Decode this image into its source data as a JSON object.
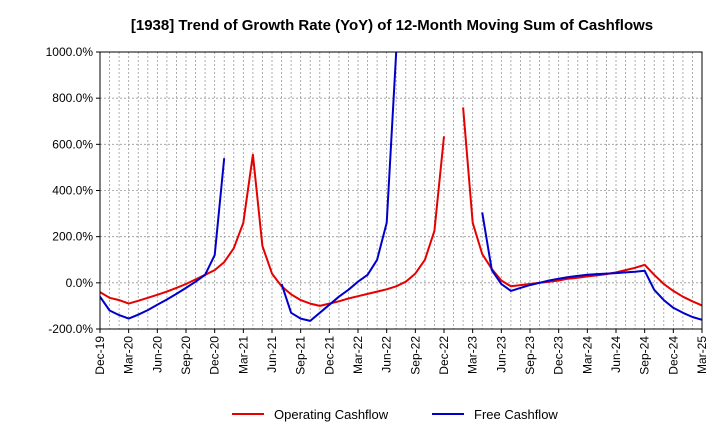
{
  "chart_data": {
    "type": "line",
    "title": "[1938]  Trend of Growth Rate (YoY) of 12-Month Moving Sum of Cashflows",
    "xlabel": "",
    "ylabel": "",
    "ylim": [
      -200,
      1000
    ],
    "yticks": [
      -200,
      0,
      200,
      400,
      600,
      800,
      1000
    ],
    "ytick_labels": [
      "-200.0%",
      "0.0%",
      "200.0%",
      "400.0%",
      "600.0%",
      "800.0%",
      "1000.0%"
    ],
    "xtick_labels": [
      "Dec-19",
      "Mar-20",
      "Jun-20",
      "Sep-20",
      "Dec-20",
      "Mar-21",
      "Jun-21",
      "Sep-21",
      "Dec-21",
      "Mar-22",
      "Jun-22",
      "Sep-22",
      "Dec-22",
      "Mar-23",
      "Jun-23",
      "Sep-23",
      "Dec-23",
      "Mar-24",
      "Jun-24",
      "Sep-24",
      "Dec-24",
      "Mar-25"
    ],
    "grid": true,
    "legend_position": "bottom",
    "series": [
      {
        "name": "Operating Cashflow",
        "color": "#e60000",
        "values": [
          -40,
          -65,
          -75,
          -90,
          -78,
          -65,
          -52,
          -38,
          -22,
          -5,
          15,
          35,
          55,
          90,
          150,
          260,
          555,
          160,
          40,
          -15,
          -50,
          -75,
          -90,
          -100,
          -90,
          -80,
          -68,
          -58,
          -48,
          -38,
          -28,
          -15,
          5,
          40,
          100,
          225,
          635,
          null,
          760,
          260,
          125,
          60,
          10,
          -15,
          -10,
          -5,
          0,
          5,
          10,
          18,
          22,
          28,
          32,
          38,
          45,
          55,
          65,
          78,
          35,
          -5,
          -35,
          -60,
          -80,
          -98,
          -110
        ]
      },
      {
        "name": "Free Cashflow",
        "color": "#0000cc",
        "values": [
          -60,
          -120,
          -140,
          -155,
          -138,
          -118,
          -95,
          -72,
          -48,
          -22,
          5,
          35,
          120,
          540,
          null,
          null,
          null,
          null,
          null,
          null,
          null,
          null,
          null,
          null,
          null,
          null,
          null,
          null,
          null,
          null,
          null,
          null,
          null,
          null,
          null,
          null,
          null,
          null,
          null,
          null,
          null,
          null,
          null,
          null,
          null,
          null,
          null,
          null,
          null,
          null,
          null,
          null,
          null,
          null,
          null,
          null,
          null,
          null,
          null,
          null,
          null,
          null,
          null,
          null,
          null
        ]
      },
      {
        "name": "Free Cashflow",
        "color": "#0000cc",
        "values": [
          null,
          null,
          null,
          null,
          null,
          null,
          null,
          null,
          null,
          null,
          null,
          null,
          null,
          null,
          null,
          null,
          null,
          null,
          null,
          -5,
          -130,
          -155,
          -165,
          -130,
          -95,
          -60,
          -30,
          5,
          35,
          100,
          260,
          1000,
          null,
          null,
          null,
          null,
          null,
          null,
          null,
          null,
          null,
          null,
          null,
          null,
          null,
          null,
          null,
          null,
          null,
          null,
          null,
          null,
          null,
          null,
          null,
          null,
          null,
          null,
          null,
          null,
          null,
          null,
          null,
          null,
          null
        ]
      },
      {
        "name": "Free Cashflow",
        "color": "#0000cc",
        "values": [
          null,
          null,
          null,
          null,
          null,
          null,
          null,
          null,
          null,
          null,
          null,
          null,
          null,
          null,
          null,
          null,
          null,
          null,
          null,
          null,
          null,
          null,
          null,
          null,
          null,
          null,
          null,
          null,
          null,
          null,
          null,
          null,
          null,
          null,
          null,
          null,
          null,
          null,
          null,
          null,
          305,
          55,
          -5,
          -35,
          -22,
          -10,
          0,
          10,
          18,
          25,
          30,
          35,
          38,
          40,
          42,
          45,
          48,
          52,
          -30,
          -75,
          -108,
          -130,
          -148,
          -160,
          -172
        ]
      }
    ]
  }
}
